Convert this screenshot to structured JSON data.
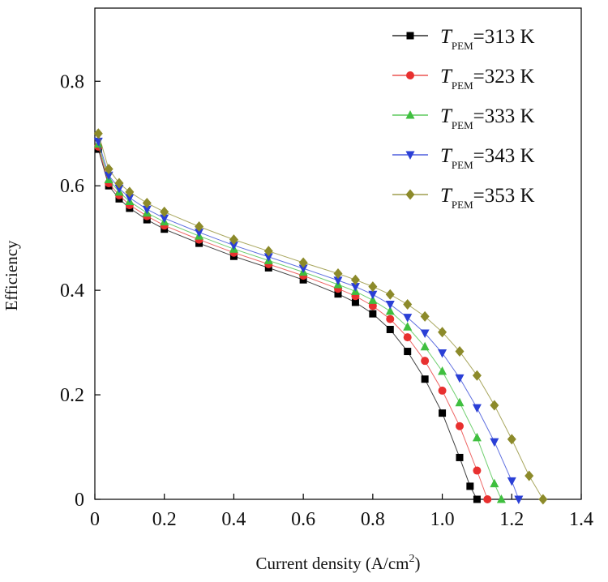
{
  "chart_data": {
    "type": "line",
    "xlabel": "Current density (A/cm",
    "xlabel_sup": "2",
    "xlabel_close": ")",
    "ylabel": "Efficiency",
    "xlim": [
      0,
      1.4
    ],
    "ylim": [
      0,
      0.94
    ],
    "x_ticks": [
      {
        "value": 0,
        "label": "0"
      },
      {
        "value": 0.2,
        "label": "0.2"
      },
      {
        "value": 0.4,
        "label": "0.4"
      },
      {
        "value": 0.6,
        "label": "0.6"
      },
      {
        "value": 0.8,
        "label": "0.8"
      },
      {
        "value": 1.0,
        "label": "1.0"
      },
      {
        "value": 1.2,
        "label": "1.2"
      },
      {
        "value": 1.4,
        "label": "1.4"
      }
    ],
    "y_ticks": [
      {
        "value": 0,
        "label": "0"
      },
      {
        "value": 0.2,
        "label": "0.2"
      },
      {
        "value": 0.4,
        "label": "0.4"
      },
      {
        "value": 0.6,
        "label": "0.6"
      },
      {
        "value": 0.8,
        "label": "0.8"
      }
    ],
    "legend_position": "top-right",
    "series": [
      {
        "name": "T_PEM=313 K",
        "label_T": "T",
        "label_sub": "PEM",
        "label_val": "=313 K",
        "color": "#000000",
        "marker": "square",
        "x": [
          0.01,
          0.04,
          0.07,
          0.1,
          0.15,
          0.2,
          0.3,
          0.4,
          0.5,
          0.6,
          0.7,
          0.75,
          0.8,
          0.85,
          0.9,
          0.95,
          1.0,
          1.05,
          1.08,
          1.1
        ],
        "y": [
          0.67,
          0.6,
          0.575,
          0.557,
          0.535,
          0.517,
          0.49,
          0.465,
          0.443,
          0.42,
          0.393,
          0.377,
          0.355,
          0.325,
          0.283,
          0.23,
          0.165,
          0.08,
          0.025,
          0.0
        ]
      },
      {
        "name": "T_PEM=323 K",
        "label_T": "T",
        "label_sub": "PEM",
        "label_val": "=323 K",
        "color": "#e8302f",
        "marker": "circle",
        "x": [
          0.01,
          0.04,
          0.07,
          0.1,
          0.15,
          0.2,
          0.3,
          0.4,
          0.5,
          0.6,
          0.7,
          0.75,
          0.8,
          0.85,
          0.9,
          0.95,
          1.0,
          1.05,
          1.1,
          1.13
        ],
        "y": [
          0.675,
          0.605,
          0.582,
          0.563,
          0.542,
          0.524,
          0.497,
          0.472,
          0.45,
          0.428,
          0.403,
          0.389,
          0.37,
          0.345,
          0.31,
          0.265,
          0.208,
          0.14,
          0.055,
          0.0
        ]
      },
      {
        "name": "T_PEM=333 K",
        "label_T": "T",
        "label_sub": "PEM",
        "label_val": "=333 K",
        "color": "#3fbf3f",
        "marker": "triangle-up",
        "x": [
          0.01,
          0.04,
          0.07,
          0.1,
          0.15,
          0.2,
          0.3,
          0.4,
          0.5,
          0.6,
          0.7,
          0.75,
          0.8,
          0.85,
          0.9,
          0.95,
          1.0,
          1.05,
          1.1,
          1.15,
          1.17
        ],
        "y": [
          0.68,
          0.612,
          0.588,
          0.57,
          0.548,
          0.531,
          0.504,
          0.479,
          0.457,
          0.435,
          0.411,
          0.398,
          0.381,
          0.36,
          0.33,
          0.292,
          0.245,
          0.185,
          0.118,
          0.03,
          0.0
        ]
      },
      {
        "name": "T_PEM=343 K",
        "label_T": "T",
        "label_sub": "PEM",
        "label_val": "=343 K",
        "color": "#2a3fd6",
        "marker": "triangle-down",
        "x": [
          0.01,
          0.04,
          0.07,
          0.1,
          0.15,
          0.2,
          0.3,
          0.4,
          0.5,
          0.6,
          0.7,
          0.75,
          0.8,
          0.85,
          0.9,
          0.95,
          1.0,
          1.05,
          1.1,
          1.15,
          1.2,
          1.22
        ],
        "y": [
          0.685,
          0.62,
          0.595,
          0.577,
          0.555,
          0.538,
          0.511,
          0.486,
          0.464,
          0.442,
          0.419,
          0.407,
          0.392,
          0.373,
          0.348,
          0.318,
          0.28,
          0.232,
          0.175,
          0.11,
          0.035,
          0.0
        ]
      },
      {
        "name": "T_PEM=353 K",
        "label_T": "T",
        "label_sub": "PEM",
        "label_val": "=353 K",
        "color": "#8c8a2a",
        "marker": "diamond",
        "x": [
          0.01,
          0.04,
          0.07,
          0.1,
          0.15,
          0.2,
          0.3,
          0.4,
          0.5,
          0.6,
          0.7,
          0.75,
          0.8,
          0.85,
          0.9,
          0.95,
          1.0,
          1.05,
          1.1,
          1.15,
          1.2,
          1.25,
          1.29
        ],
        "y": [
          0.7,
          0.632,
          0.605,
          0.588,
          0.567,
          0.55,
          0.522,
          0.497,
          0.475,
          0.453,
          0.432,
          0.42,
          0.407,
          0.392,
          0.373,
          0.35,
          0.32,
          0.283,
          0.237,
          0.18,
          0.115,
          0.045,
          0.0
        ]
      }
    ]
  }
}
